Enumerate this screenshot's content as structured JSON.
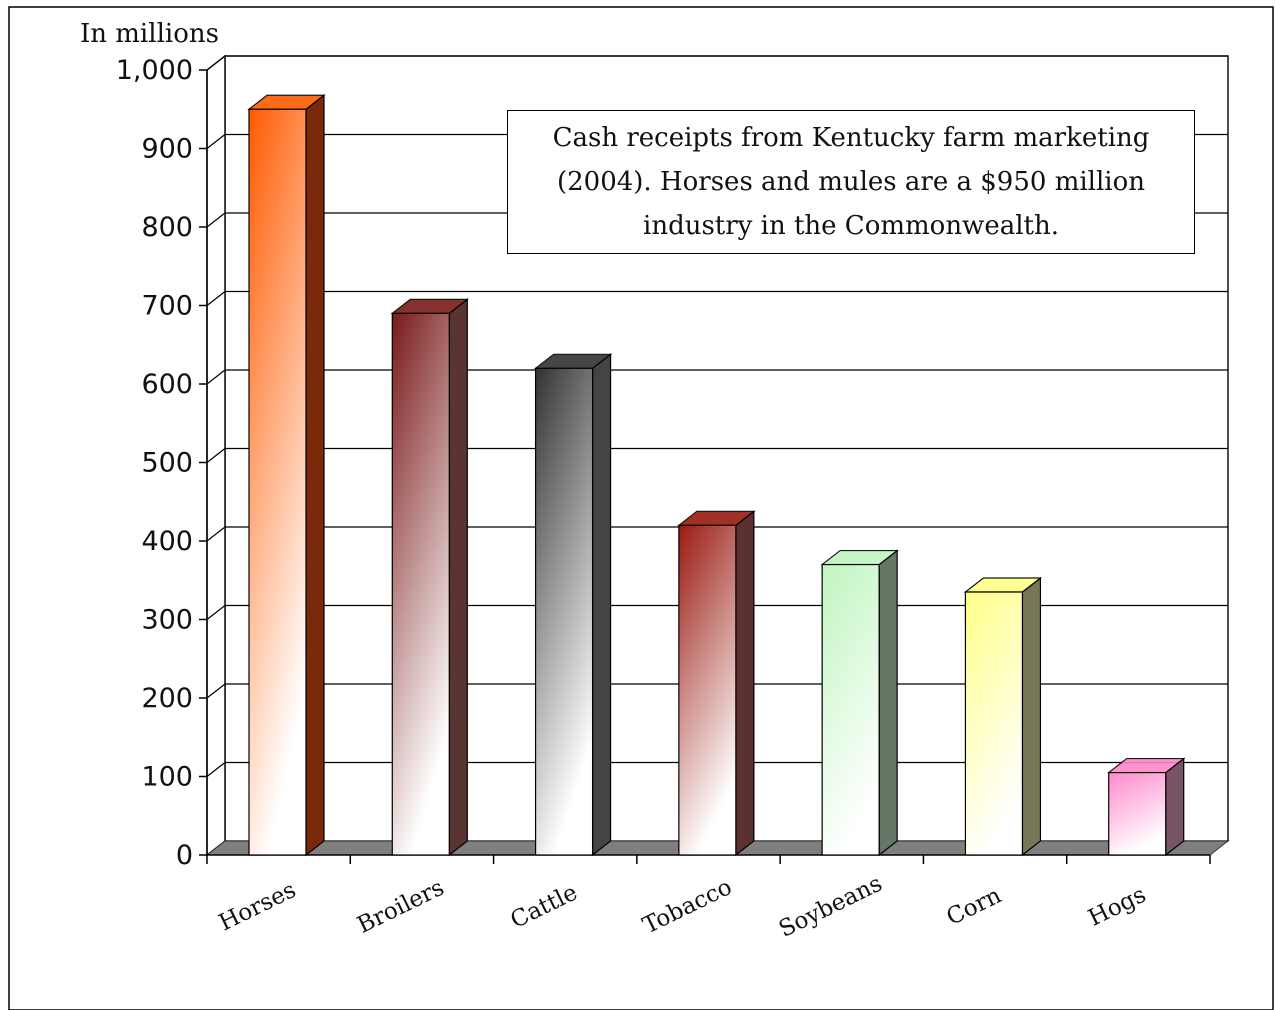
{
  "chart_data": {
    "type": "bar",
    "ylabel": "In millions",
    "categories": [
      "Horses",
      "Broilers",
      "Cattle",
      "Tobacco",
      "Soybeans",
      "Corn",
      "Hogs"
    ],
    "values": [
      950,
      690,
      620,
      420,
      370,
      335,
      105
    ],
    "ylim": [
      0,
      1000
    ],
    "yticks": [
      0,
      100,
      200,
      300,
      400,
      500,
      600,
      700,
      800,
      900,
      1000
    ],
    "ytick_labels": [
      "0",
      "100",
      "200",
      "300",
      "400",
      "500",
      "600",
      "700",
      "800",
      "900",
      "1,000"
    ],
    "annotation": "Cash receipts from Kentucky farm marketing (2004). Horses and mules are a $950 million industry in the Commonwealth.",
    "grid": true,
    "style": "3d-bar",
    "bar_colors": [
      {
        "top": "#ff5a00",
        "bottom": "#ffffff",
        "side": "#7a2a0a"
      },
      {
        "top": "#7a1a1a",
        "bottom": "#ffffff",
        "side": "#5a3333"
      },
      {
        "top": "#333333",
        "bottom": "#ffffff",
        "side": "#444444"
      },
      {
        "top": "#9a1a10",
        "bottom": "#ffffff",
        "side": "#5a3030"
      },
      {
        "top": "#bff5bf",
        "bottom": "#ffffff",
        "side": "#667766"
      },
      {
        "top": "#ffff88",
        "bottom": "#ffffff",
        "side": "#777755"
      },
      {
        "top": "#ff88cc",
        "bottom": "#ffffff",
        "side": "#775566"
      }
    ]
  }
}
